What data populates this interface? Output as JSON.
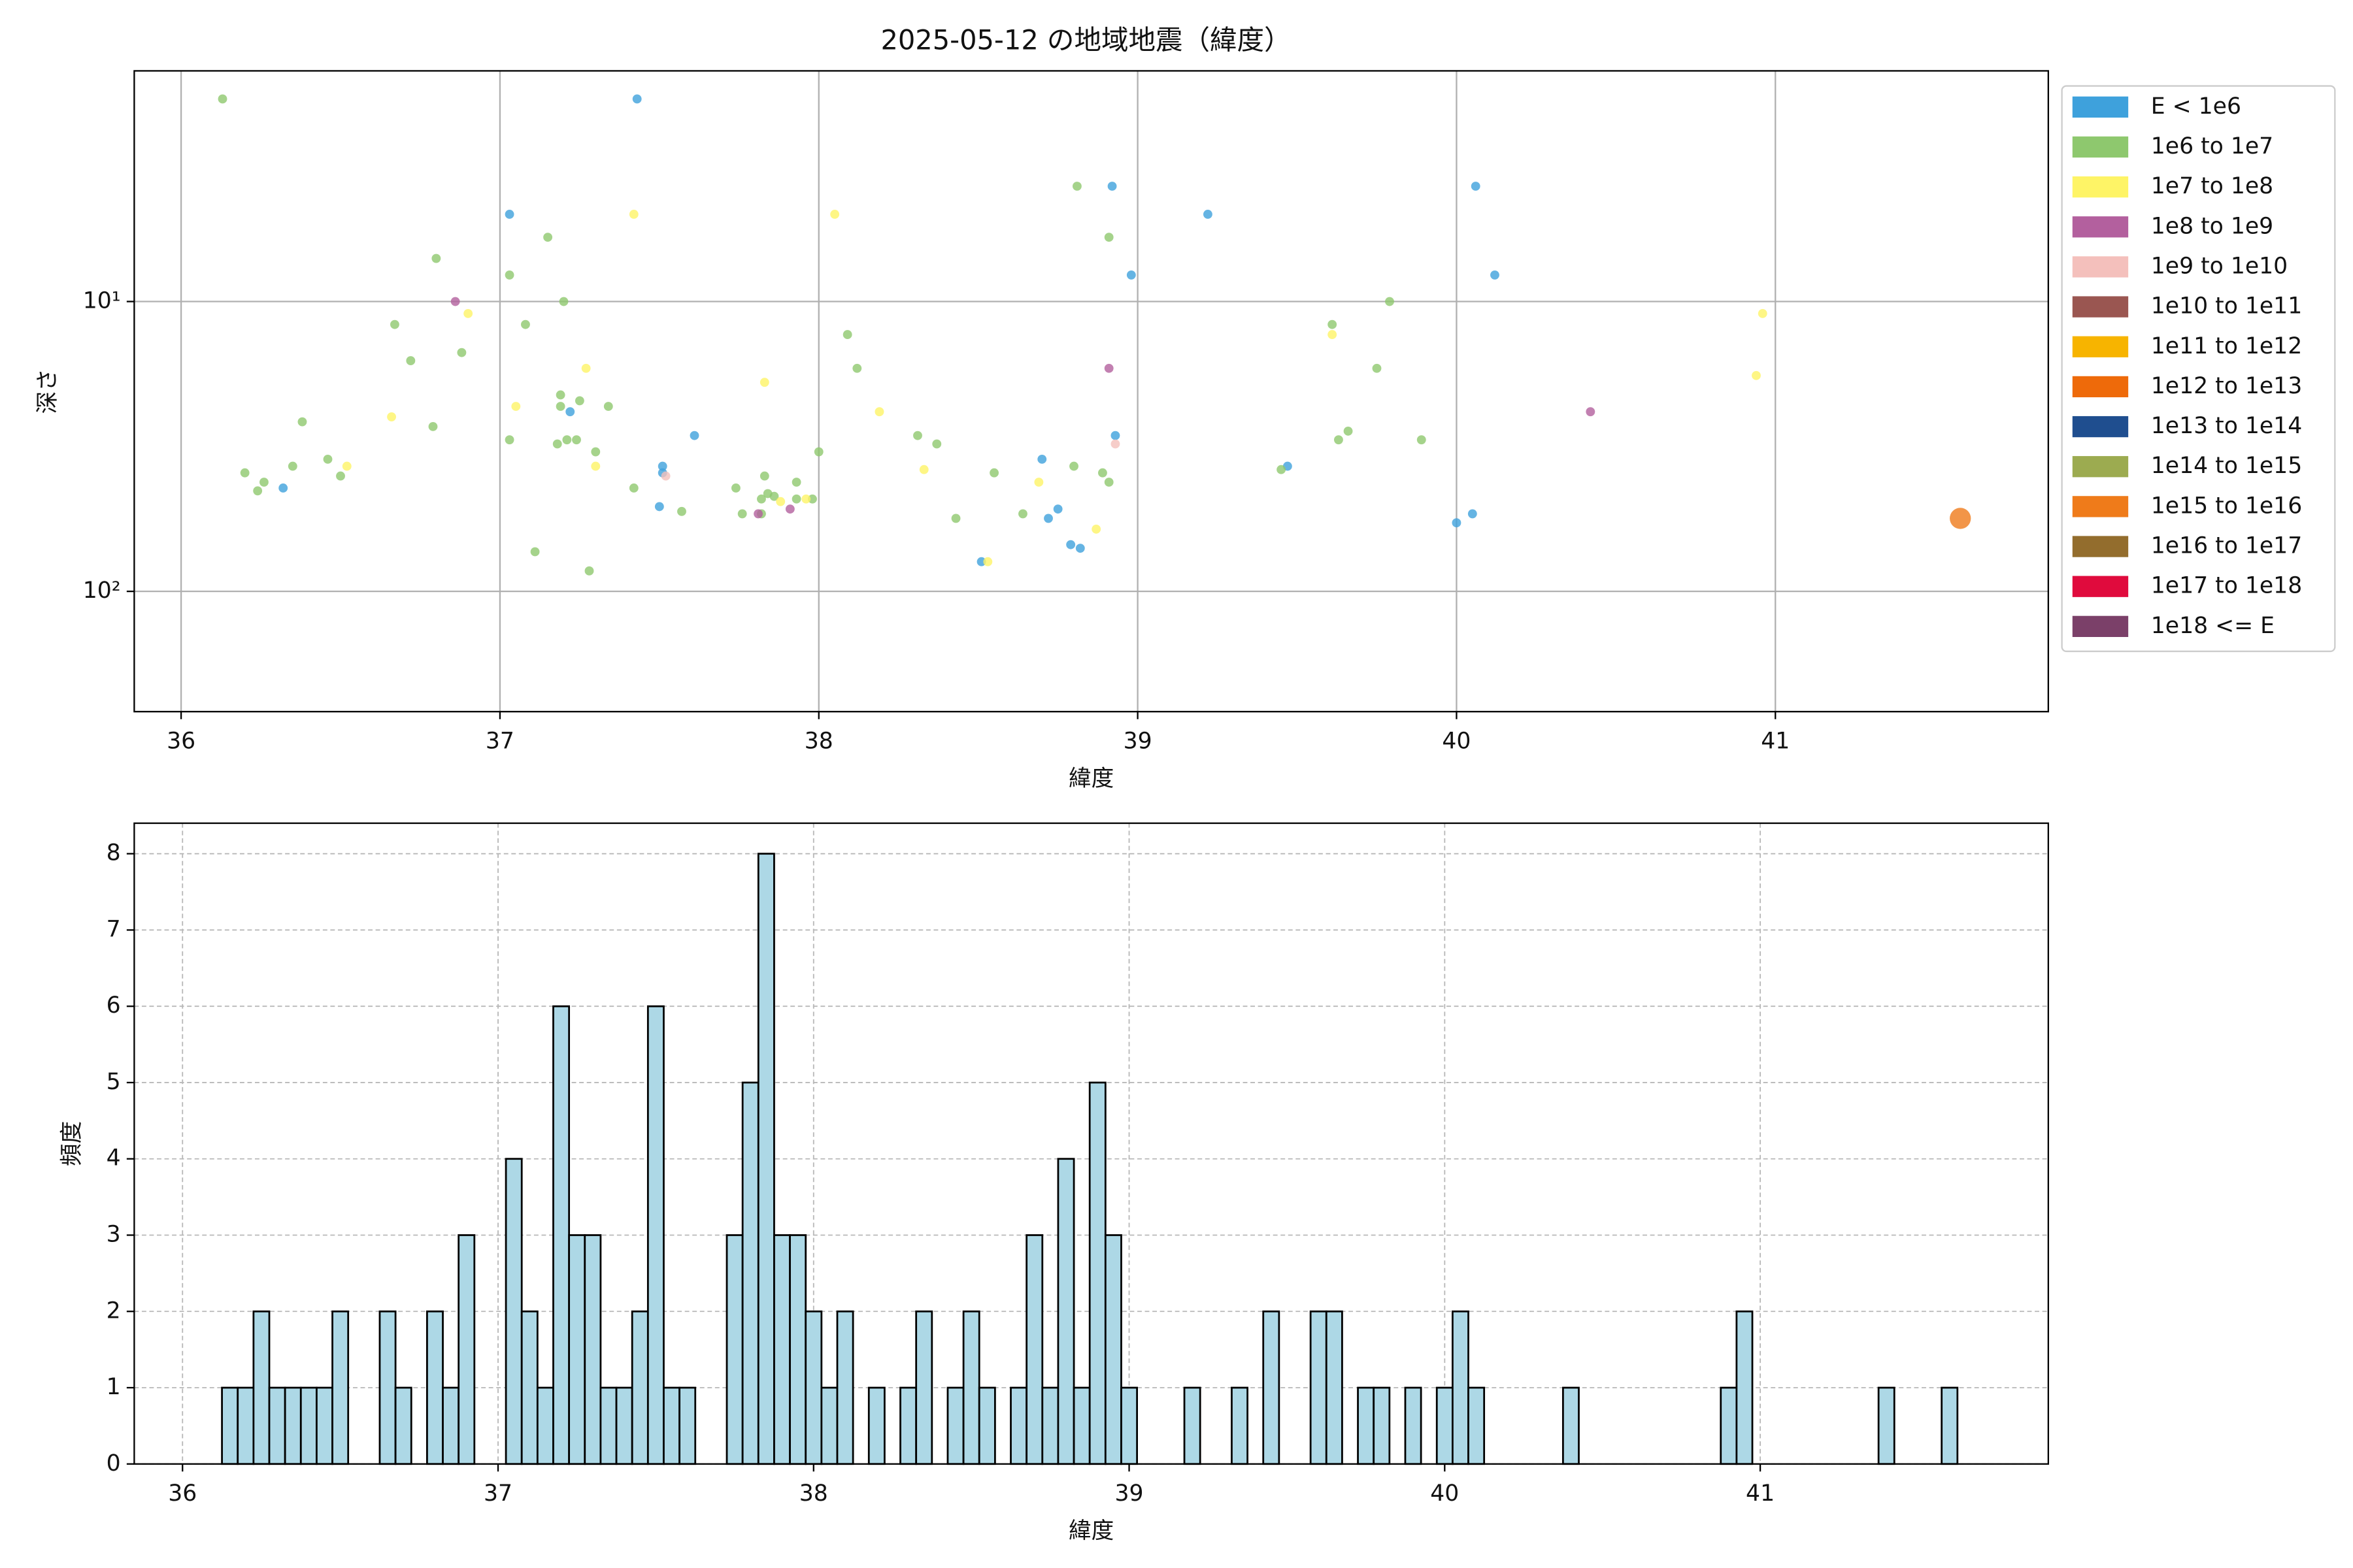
{
  "chart_data": [
    {
      "type": "scatter",
      "title": "2025-05-12 の地域地震（緯度）",
      "xlabel": "緯度",
      "ylabel": "深さ",
      "yscale": "log",
      "grid": true,
      "legend": "outside upper right",
      "xlim": [
        35.853,
        41.856
      ],
      "xticks": [
        36,
        37,
        38,
        39,
        40,
        41
      ],
      "ylim": [
        260,
        1.6
      ],
      "yticks": [
        {
          "value": 10,
          "label": "10¹"
        },
        {
          "value": 100,
          "label": "10²"
        }
      ],
      "series": [
        {
          "name": "E < 1e6",
          "color": "#3ea1dc",
          "x": [
            37.43,
            37.03,
            38.92,
            39.22,
            38.98,
            40.06,
            40.12,
            37.22,
            36.32,
            37.51,
            37.51,
            37.61,
            37.5,
            38.7,
            38.93,
            38.75,
            38.72,
            38.79,
            38.82,
            38.51,
            39.47,
            40.0,
            40.05
          ],
          "y": [
            2.0,
            5,
            4,
            5,
            8.1,
            4,
            8.1,
            24,
            44,
            37,
            39,
            29,
            51,
            35,
            29,
            52,
            56,
            69,
            71,
            79,
            37,
            58,
            54
          ]
        },
        {
          "name": "1e6 to 1e7",
          "color": "#8ec86e",
          "x": [
            36.13,
            36.8,
            36.67,
            36.72,
            36.88,
            37.03,
            37.15,
            37.08,
            37.2,
            37.19,
            37.19,
            37.25,
            37.34,
            37.21,
            37.24,
            37.18,
            37.03,
            36.79,
            36.38,
            36.2,
            36.24,
            36.26,
            36.35,
            36.46,
            36.5,
            37.3,
            37.11,
            37.28,
            37.42,
            37.57,
            37.74,
            37.76,
            37.82,
            37.82,
            37.83,
            37.84,
            37.86,
            37.93,
            37.93,
            37.98,
            38.0,
            38.09,
            38.12,
            38.31,
            38.37,
            38.43,
            38.55,
            38.64,
            38.8,
            38.81,
            38.91,
            38.89,
            38.91,
            39.61,
            39.63,
            39.66,
            39.75,
            39.79,
            39.89,
            39.45
          ],
          "y": [
            2.0,
            7.1,
            12,
            16,
            15,
            8.1,
            6,
            12,
            10,
            21,
            23,
            22,
            23,
            30,
            30,
            31,
            30,
            27,
            26,
            39,
            45,
            42,
            37,
            35,
            40,
            33,
            73,
            85,
            44,
            53,
            44,
            54,
            54,
            48,
            40,
            46,
            47,
            42,
            48,
            48,
            33,
            13,
            17,
            29,
            31,
            56,
            39,
            54,
            37,
            4,
            6,
            39,
            42,
            12,
            30,
            28,
            17,
            10,
            30,
            38
          ]
        },
        {
          "name": "1e7 to 1e8",
          "color": "#fef466",
          "x": [
            37.42,
            38.05,
            36.9,
            36.66,
            37.05,
            37.27,
            37.3,
            36.52,
            37.83,
            38.19,
            38.33,
            38.69,
            38.87,
            37.88,
            37.96,
            38.53,
            39.61,
            40.96,
            40.94
          ],
          "y": [
            5,
            5,
            11,
            25,
            23,
            17,
            37,
            37,
            19,
            24,
            38,
            42,
            61,
            49,
            48,
            79,
            13,
            11,
            18
          ]
        },
        {
          "name": "1e8 to 1e9",
          "color": "#b3609e",
          "x": [
            36.86,
            38.91,
            40.42,
            37.81,
            37.91
          ],
          "y": [
            10,
            17,
            24,
            54,
            52
          ]
        },
        {
          "name": "1e9 to 1e10",
          "color": "#f4c0bc",
          "x": [
            38.93,
            37.52
          ],
          "y": [
            31,
            40
          ]
        },
        {
          "name": "1e10 to 1e11",
          "color": "#9a5651",
          "x": [],
          "y": []
        },
        {
          "name": "1e11 to 1e12",
          "color": "#f7b400",
          "x": [],
          "y": []
        },
        {
          "name": "1e12 to 1e13",
          "color": "#ee6a0a",
          "x": [],
          "y": []
        },
        {
          "name": "1e13 to 1e14",
          "color": "#1f4e8f",
          "x": [],
          "y": []
        },
        {
          "name": "1e14 to 1e15",
          "color": "#9cab50",
          "x": [],
          "y": []
        },
        {
          "name": "1e15 to 1e16",
          "color": "#ef7b1a",
          "marker_size": 7,
          "x": [
            41.58
          ],
          "y": [
            56
          ]
        },
        {
          "name": "1e16 to 1e17",
          "color": "#936d2d",
          "x": [],
          "y": []
        },
        {
          "name": "1e17 to 1e18",
          "color": "#e00b3d",
          "x": [],
          "y": []
        },
        {
          "name": "1e18 <= E",
          "color": "#7b4069",
          "x": [],
          "y": []
        }
      ]
    },
    {
      "type": "histogram",
      "xlabel": "緯度",
      "ylabel": "頻度",
      "grid": "dashed",
      "color": "#add8e6",
      "edgecolor": "#000000",
      "xlim": [
        35.847,
        41.913
      ],
      "xticks": [
        36,
        37,
        38,
        39,
        40,
        41
      ],
      "ylim": [
        0,
        8.4
      ],
      "yticks": [
        0,
        1,
        2,
        3,
        4,
        5,
        6,
        7,
        8
      ],
      "bins": [
        36.125,
        36.175,
        36.225,
        36.275,
        36.325,
        36.375,
        36.425,
        36.475,
        36.525,
        36.575,
        36.625,
        36.675,
        36.725,
        36.775,
        36.825,
        36.875,
        36.925,
        36.975,
        37.025,
        37.075,
        37.125,
        37.175,
        37.225,
        37.275,
        37.325,
        37.375,
        37.425,
        37.475,
        37.525,
        37.575,
        37.625,
        37.675,
        37.725,
        37.775,
        37.825,
        37.875,
        37.925,
        37.975,
        38.025,
        38.075,
        38.125,
        38.175,
        38.225,
        38.275,
        38.325,
        38.375,
        38.425,
        38.475,
        38.525,
        38.575,
        38.625,
        38.675,
        38.725,
        38.775,
        38.825,
        38.875,
        38.925,
        38.975,
        39.025,
        39.075,
        39.125,
        39.175,
        39.225,
        39.275,
        39.325,
        39.375,
        39.425,
        39.475,
        39.525,
        39.575,
        39.625,
        39.675,
        39.725,
        39.775,
        39.825,
        39.875,
        39.925,
        39.975,
        40.025,
        40.075,
        40.125,
        40.175,
        40.225,
        40.275,
        40.325,
        40.375,
        40.425,
        40.475,
        40.525,
        40.575,
        40.625,
        40.675,
        40.725,
        40.775,
        40.825,
        40.875,
        40.925,
        40.975,
        41.025,
        41.075,
        41.125,
        41.175,
        41.225,
        41.275,
        41.325,
        41.375,
        41.425,
        41.475,
        41.525,
        41.575,
        41.625
      ],
      "counts": [
        1,
        1,
        2,
        1,
        1,
        1,
        1,
        2,
        0,
        0,
        2,
        1,
        0,
        2,
        1,
        3,
        0,
        0,
        4,
        2,
        1,
        6,
        3,
        3,
        1,
        1,
        2,
        6,
        1,
        1,
        0,
        0,
        3,
        5,
        8,
        3,
        3,
        2,
        1,
        2,
        0,
        1,
        0,
        1,
        2,
        0,
        1,
        2,
        1,
        0,
        1,
        3,
        1,
        4,
        1,
        5,
        3,
        1,
        0,
        0,
        0,
        1,
        0,
        0,
        1,
        0,
        2,
        0,
        0,
        2,
        2,
        0,
        1,
        1,
        0,
        1,
        0,
        1,
        2,
        1,
        0,
        0,
        0,
        0,
        0,
        1,
        0,
        0,
        0,
        0,
        0,
        0,
        0,
        0,
        0,
        1,
        2,
        0,
        0,
        0,
        0,
        0,
        0,
        0,
        0,
        1,
        0,
        0,
        0,
        1
      ]
    }
  ]
}
